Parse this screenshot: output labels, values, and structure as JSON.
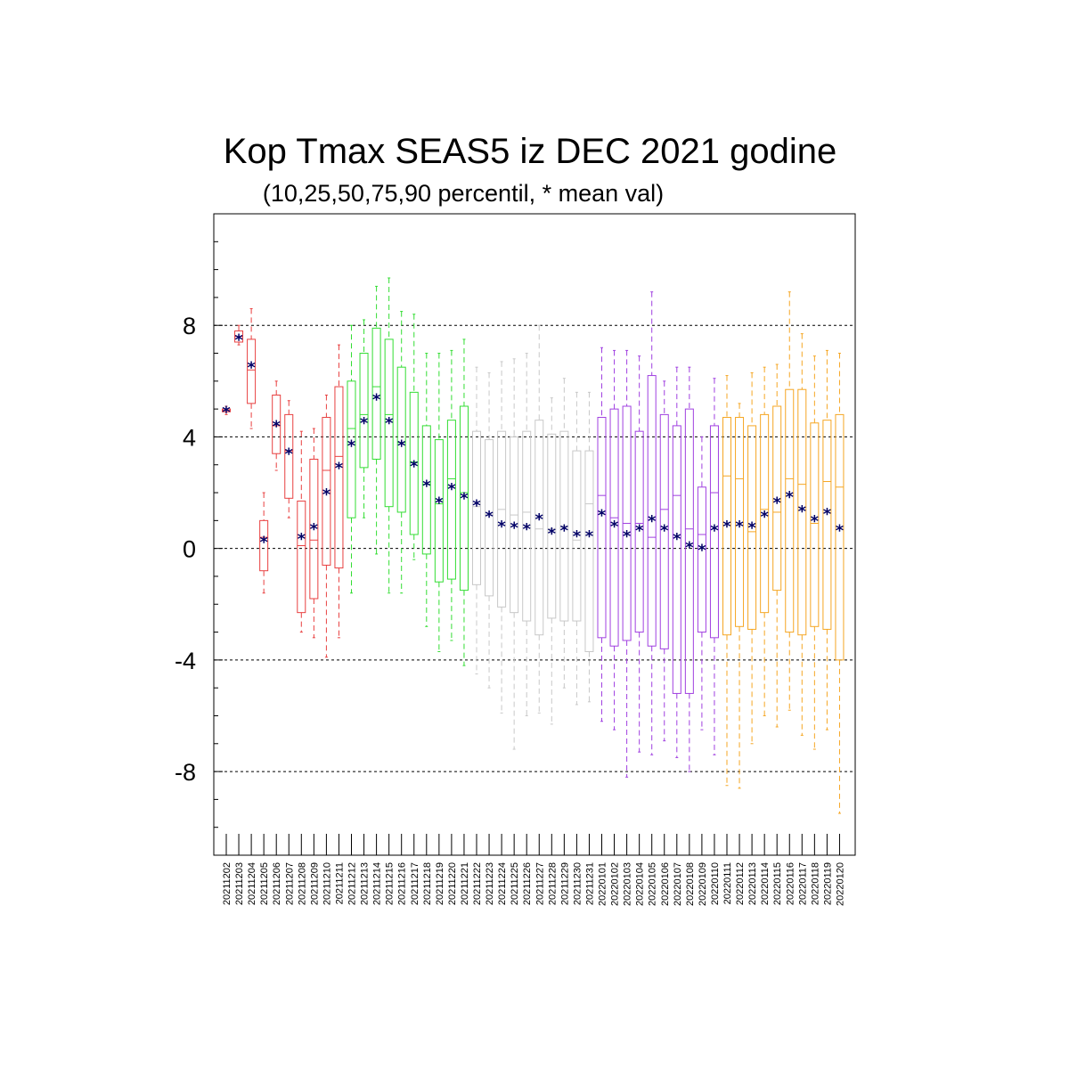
{
  "chart_data": {
    "type": "boxplot",
    "title": "Kop Tmax SEAS5 iz DEC 2021 godine",
    "subtitle": "(10,25,50,75,90 percentil, * mean val)",
    "ylim": [
      -11,
      12
    ],
    "yticks": [
      8,
      4,
      0,
      -4,
      -8
    ],
    "grid": "horizontal-dashed",
    "categories": [
      "20211202",
      "20211203",
      "20211204",
      "20211205",
      "20211206",
      "20211207",
      "20211208",
      "20211209",
      "20211210",
      "20211211",
      "20211212",
      "20211213",
      "20211214",
      "20211215",
      "20211216",
      "20211217",
      "20211218",
      "20211219",
      "20211220",
      "20211221",
      "20211222",
      "20211223",
      "20211224",
      "20211225",
      "20211226",
      "20211227",
      "20211228",
      "20211229",
      "20211230",
      "20211231",
      "20220101",
      "20220102",
      "20220103",
      "20220104",
      "20220105",
      "20220106",
      "20220107",
      "20220108",
      "20220109",
      "20220110",
      "20220111",
      "20220112",
      "20220113",
      "20220114",
      "20220115",
      "20220116",
      "20220117",
      "20220118",
      "20220119",
      "20220120"
    ],
    "colors": [
      "#e84040",
      "#e84040",
      "#e84040",
      "#e84040",
      "#e84040",
      "#e84040",
      "#e84040",
      "#e84040",
      "#e84040",
      "#e84040",
      "#33dd33",
      "#33dd33",
      "#33dd33",
      "#33dd33",
      "#33dd33",
      "#33dd33",
      "#33dd33",
      "#33dd33",
      "#33dd33",
      "#33dd33",
      "#c8c8c8",
      "#c8c8c8",
      "#c8c8c8",
      "#c8c8c8",
      "#c8c8c8",
      "#c8c8c8",
      "#c8c8c8",
      "#c8c8c8",
      "#c8c8c8",
      "#c8c8c8",
      "#a040e0",
      "#a040e0",
      "#a040e0",
      "#a040e0",
      "#a040e0",
      "#a040e0",
      "#a040e0",
      "#a040e0",
      "#a040e0",
      "#a040e0",
      "#f5a623",
      "#f5a623",
      "#f5a623",
      "#f5a623",
      "#f5a623",
      "#f5a623",
      "#f5a623",
      "#f5a623",
      "#f5a623",
      "#f5a623"
    ],
    "mean_marker_color": "#000066",
    "p10": [
      4.8,
      7.3,
      4.3,
      -1.6,
      2.8,
      1.1,
      -3.0,
      -3.2,
      -3.9,
      -3.2,
      -1.6,
      1.1,
      -0.2,
      -1.6,
      -1.6,
      -0.4,
      -2.8,
      -3.7,
      -3.3,
      -4.2,
      -4.5,
      -5.0,
      -5.9,
      -7.2,
      -6.0,
      -5.9,
      -6.3,
      -5.0,
      -5.6,
      -5.5,
      -6.2,
      -6.5,
      -8.2,
      -7.3,
      -7.4,
      -6.9,
      -7.5,
      -8.0,
      -6.5,
      -7.4,
      -8.5,
      -8.6,
      -7.0,
      -6.0,
      -6.4,
      -5.8,
      -6.7,
      -7.2,
      -6.5,
      -9.5
    ],
    "p25": [
      4.9,
      7.4,
      5.2,
      -0.8,
      3.4,
      1.8,
      -2.3,
      -1.8,
      -0.6,
      -0.7,
      1.1,
      2.9,
      3.2,
      1.5,
      1.3,
      0.5,
      -0.2,
      -1.2,
      -1.1,
      -1.5,
      -1.3,
      -1.7,
      -2.1,
      -2.3,
      -2.6,
      -3.1,
      -2.5,
      -2.6,
      -2.6,
      -3.7,
      -3.2,
      -3.5,
      -3.3,
      -3.0,
      -3.5,
      -3.6,
      -5.2,
      -5.2,
      -3.0,
      -3.2,
      -3.1,
      -2.8,
      -2.9,
      -2.3,
      -1.5,
      -3.0,
      -3.1,
      -2.8,
      -2.9,
      -4.0
    ],
    "p50": [
      4.95,
      7.6,
      6.4,
      0.4,
      4.4,
      3.5,
      0.1,
      0.3,
      2.8,
      3.3,
      4.3,
      4.8,
      5.8,
      4.8,
      3.8,
      3.1,
      2.3,
      1.6,
      2.5,
      2.0,
      1.5,
      1.2,
      1.4,
      1.2,
      1.3,
      0.7,
      0.7,
      0.8,
      0.3,
      1.6,
      1.9,
      1.1,
      0.9,
      0.9,
      0.4,
      1.4,
      1.9,
      0.7,
      0.5,
      2.0,
      2.6,
      2.5,
      0.6,
      1.4,
      1.3,
      2.5,
      2.3,
      0.9,
      2.4,
      2.2
    ],
    "p75": [
      5.0,
      7.8,
      7.5,
      1.0,
      5.5,
      4.8,
      1.7,
      3.2,
      4.7,
      5.8,
      6.0,
      7.0,
      7.9,
      7.5,
      6.5,
      5.6,
      4.4,
      3.9,
      4.6,
      5.1,
      4.2,
      3.9,
      4.2,
      4.0,
      4.2,
      4.6,
      4.1,
      4.2,
      3.5,
      3.5,
      4.7,
      5.0,
      5.1,
      4.2,
      6.2,
      4.8,
      4.4,
      5.0,
      2.2,
      4.4,
      4.7,
      4.7,
      4.4,
      4.8,
      5.1,
      5.7,
      5.7,
      4.5,
      4.6,
      4.8
    ],
    "p90": [
      5.1,
      8.0,
      8.6,
      2.0,
      6.0,
      5.3,
      4.2,
      4.3,
      5.5,
      7.3,
      8.0,
      8.2,
      9.4,
      9.7,
      8.5,
      8.4,
      7.0,
      7.0,
      7.1,
      7.5,
      6.5,
      6.3,
      6.7,
      6.8,
      7.0,
      8.0,
      5.4,
      6.1,
      5.6,
      5.6,
      7.2,
      7.1,
      7.1,
      6.9,
      9.2,
      6.0,
      6.5,
      6.5,
      4.0,
      6.1,
      6.2,
      5.2,
      6.3,
      6.5,
      6.6,
      9.2,
      7.7,
      6.9,
      7.1,
      7.0
    ],
    "mean": [
      4.95,
      7.55,
      6.55,
      0.3,
      4.45,
      3.45,
      0.4,
      0.75,
      2.0,
      2.95,
      3.75,
      4.55,
      5.4,
      4.55,
      3.75,
      3.0,
      2.3,
      1.7,
      2.2,
      1.85,
      1.6,
      1.2,
      0.85,
      0.8,
      0.75,
      1.1,
      0.6,
      0.7,
      0.5,
      0.5,
      1.25,
      0.85,
      0.5,
      0.7,
      1.05,
      0.7,
      0.4,
      0.1,
      0.0,
      0.7,
      0.85,
      0.85,
      0.8,
      1.2,
      1.7,
      1.9,
      1.4,
      1.05,
      1.3,
      0.7
    ]
  }
}
